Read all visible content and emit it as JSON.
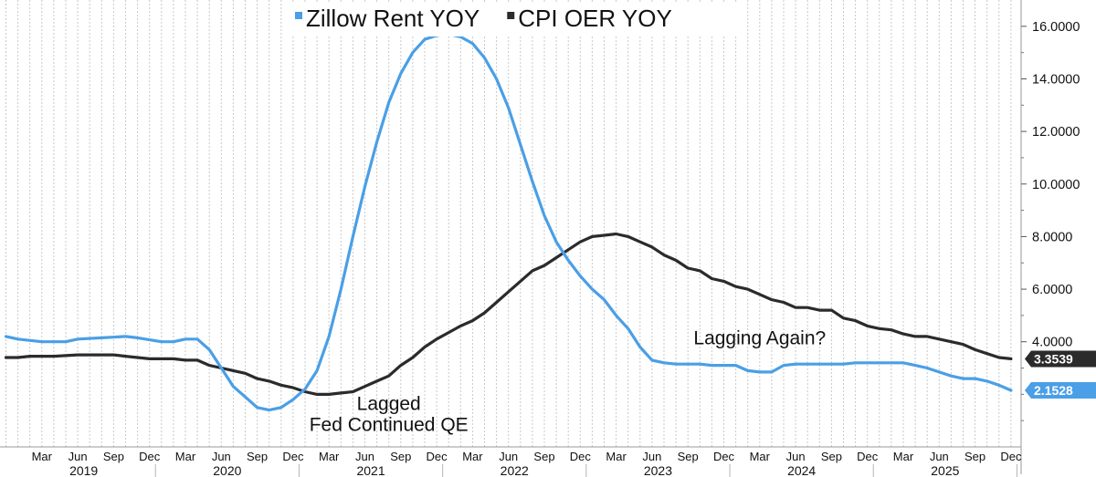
{
  "chart_data": {
    "type": "line",
    "ylim": [
      0,
      17
    ],
    "y_ticks": [
      "4.0000",
      "6.0000",
      "8.0000",
      "10.0000",
      "12.0000",
      "14.0000",
      "16.0000"
    ],
    "y_tick_values": [
      4,
      6,
      8,
      10,
      12,
      14,
      16
    ],
    "grid": "vertical-monthly",
    "legend_position": "top-center",
    "x_tick_labels": [
      "Mar",
      "Jun",
      "Sep",
      "Dec",
      "Mar",
      "Jun",
      "Sep",
      "Dec",
      "Mar",
      "Jun",
      "Sep",
      "Dec",
      "Mar",
      "Jun",
      "Sep",
      "Dec",
      "Mar",
      "Jun",
      "Sep",
      "Dec",
      "Mar",
      "Jun",
      "Sep",
      "Dec",
      "Mar",
      "Jun",
      "Sep",
      "Dec"
    ],
    "x_tick_dates": [
      "2019-03",
      "2019-06",
      "2019-09",
      "2019-12",
      "2020-03",
      "2020-06",
      "2020-09",
      "2020-12",
      "2021-03",
      "2021-06",
      "2021-09",
      "2021-12",
      "2022-03",
      "2022-06",
      "2022-09",
      "2022-12",
      "2023-03",
      "2023-06",
      "2023-09",
      "2023-12",
      "2024-03",
      "2024-06",
      "2024-09",
      "2024-12",
      "2025-03",
      "2025-06",
      "2025-09",
      "2025-12"
    ],
    "years": [
      "2019",
      "2020",
      "2021",
      "2022",
      "2023",
      "2024",
      "2025"
    ],
    "series": [
      {
        "name": "Zillow Rent YOY",
        "color": "#4a9fe6",
        "points": [
          [
            "2018-12",
            4.2
          ],
          [
            "2019-01",
            4.1
          ],
          [
            "2019-03",
            4.0
          ],
          [
            "2019-05",
            4.0
          ],
          [
            "2019-06",
            4.1
          ],
          [
            "2019-08",
            4.15
          ],
          [
            "2019-10",
            4.2
          ],
          [
            "2019-11",
            4.15
          ],
          [
            "2020-01",
            4.0
          ],
          [
            "2020-02",
            4.0
          ],
          [
            "2020-03",
            4.1
          ],
          [
            "2020-04",
            4.1
          ],
          [
            "2020-05",
            3.7
          ],
          [
            "2020-06",
            3.0
          ],
          [
            "2020-07",
            2.3
          ],
          [
            "2020-08",
            1.9
          ],
          [
            "2020-09",
            1.5
          ],
          [
            "2020-10",
            1.4
          ],
          [
            "2020-11",
            1.5
          ],
          [
            "2020-12",
            1.8
          ],
          [
            "2021-01",
            2.2
          ],
          [
            "2021-02",
            2.9
          ],
          [
            "2021-03",
            4.2
          ],
          [
            "2021-04",
            6.0
          ],
          [
            "2021-05",
            8.0
          ],
          [
            "2021-06",
            9.9
          ],
          [
            "2021-07",
            11.6
          ],
          [
            "2021-08",
            13.1
          ],
          [
            "2021-09",
            14.2
          ],
          [
            "2021-10",
            15.0
          ],
          [
            "2021-11",
            15.5
          ],
          [
            "2021-12",
            15.65
          ],
          [
            "2022-01",
            15.7
          ],
          [
            "2022-02",
            15.6
          ],
          [
            "2022-03",
            15.35
          ],
          [
            "2022-04",
            14.8
          ],
          [
            "2022-05",
            14.0
          ],
          [
            "2022-06",
            12.9
          ],
          [
            "2022-07",
            11.5
          ],
          [
            "2022-08",
            10.1
          ],
          [
            "2022-09",
            8.8
          ],
          [
            "2022-10",
            7.8
          ],
          [
            "2022-11",
            7.1
          ],
          [
            "2022-12",
            6.5
          ],
          [
            "2023-01",
            6.0
          ],
          [
            "2023-02",
            5.6
          ],
          [
            "2023-03",
            5.0
          ],
          [
            "2023-04",
            4.5
          ],
          [
            "2023-05",
            3.8
          ],
          [
            "2023-06",
            3.3
          ],
          [
            "2023-07",
            3.2
          ],
          [
            "2023-08",
            3.15
          ],
          [
            "2023-09",
            3.15
          ],
          [
            "2023-10",
            3.15
          ],
          [
            "2023-11",
            3.1
          ],
          [
            "2023-12",
            3.1
          ],
          [
            "2024-01",
            3.1
          ],
          [
            "2024-02",
            2.9
          ],
          [
            "2024-03",
            2.85
          ],
          [
            "2024-04",
            2.85
          ],
          [
            "2024-05",
            3.1
          ],
          [
            "2024-06",
            3.15
          ],
          [
            "2024-07",
            3.15
          ],
          [
            "2024-08",
            3.15
          ],
          [
            "2024-09",
            3.15
          ],
          [
            "2024-10",
            3.15
          ],
          [
            "2024-11",
            3.2
          ],
          [
            "2024-12",
            3.2
          ],
          [
            "2025-01",
            3.2
          ],
          [
            "2025-02",
            3.2
          ],
          [
            "2025-03",
            3.2
          ],
          [
            "2025-04",
            3.1
          ],
          [
            "2025-05",
            3.0
          ],
          [
            "2025-06",
            2.85
          ],
          [
            "2025-07",
            2.7
          ],
          [
            "2025-08",
            2.6
          ],
          [
            "2025-09",
            2.6
          ],
          [
            "2025-10",
            2.5
          ],
          [
            "2025-11",
            2.35
          ],
          [
            "2025-12",
            2.15
          ]
        ],
        "last_value_label": "2.1528"
      },
      {
        "name": "CPI OER YOY",
        "color": "#2b2b2b",
        "points": [
          [
            "2018-12",
            3.4
          ],
          [
            "2019-01",
            3.4
          ],
          [
            "2019-02",
            3.45
          ],
          [
            "2019-04",
            3.45
          ],
          [
            "2019-06",
            3.5
          ],
          [
            "2019-07",
            3.5
          ],
          [
            "2019-09",
            3.5
          ],
          [
            "2019-10",
            3.45
          ],
          [
            "2019-12",
            3.35
          ],
          [
            "2020-01",
            3.35
          ],
          [
            "2020-02",
            3.35
          ],
          [
            "2020-03",
            3.3
          ],
          [
            "2020-04",
            3.3
          ],
          [
            "2020-05",
            3.1
          ],
          [
            "2020-06",
            3.0
          ],
          [
            "2020-07",
            2.9
          ],
          [
            "2020-08",
            2.8
          ],
          [
            "2020-09",
            2.6
          ],
          [
            "2020-10",
            2.5
          ],
          [
            "2020-11",
            2.35
          ],
          [
            "2020-12",
            2.25
          ],
          [
            "2021-01",
            2.1
          ],
          [
            "2021-02",
            2.0
          ],
          [
            "2021-03",
            2.0
          ],
          [
            "2021-04",
            2.05
          ],
          [
            "2021-05",
            2.1
          ],
          [
            "2021-06",
            2.3
          ],
          [
            "2021-07",
            2.5
          ],
          [
            "2021-08",
            2.7
          ],
          [
            "2021-09",
            3.1
          ],
          [
            "2021-10",
            3.4
          ],
          [
            "2021-11",
            3.8
          ],
          [
            "2021-12",
            4.1
          ],
          [
            "2022-01",
            4.35
          ],
          [
            "2022-02",
            4.6
          ],
          [
            "2022-03",
            4.8
          ],
          [
            "2022-04",
            5.1
          ],
          [
            "2022-05",
            5.5
          ],
          [
            "2022-06",
            5.9
          ],
          [
            "2022-07",
            6.3
          ],
          [
            "2022-08",
            6.7
          ],
          [
            "2022-09",
            6.9
          ],
          [
            "2022-10",
            7.2
          ],
          [
            "2022-11",
            7.5
          ],
          [
            "2022-12",
            7.8
          ],
          [
            "2023-01",
            8.0
          ],
          [
            "2023-02",
            8.05
          ],
          [
            "2023-03",
            8.1
          ],
          [
            "2023-04",
            8.0
          ],
          [
            "2023-05",
            7.8
          ],
          [
            "2023-06",
            7.6
          ],
          [
            "2023-07",
            7.3
          ],
          [
            "2023-08",
            7.1
          ],
          [
            "2023-09",
            6.8
          ],
          [
            "2023-10",
            6.7
          ],
          [
            "2023-11",
            6.4
          ],
          [
            "2023-12",
            6.3
          ],
          [
            "2024-01",
            6.1
          ],
          [
            "2024-02",
            6.0
          ],
          [
            "2024-03",
            5.8
          ],
          [
            "2024-04",
            5.6
          ],
          [
            "2024-05",
            5.5
          ],
          [
            "2024-06",
            5.3
          ],
          [
            "2024-07",
            5.3
          ],
          [
            "2024-08",
            5.2
          ],
          [
            "2024-09",
            5.2
          ],
          [
            "2024-10",
            4.9
          ],
          [
            "2024-11",
            4.8
          ],
          [
            "2024-12",
            4.6
          ],
          [
            "2025-01",
            4.5
          ],
          [
            "2025-02",
            4.45
          ],
          [
            "2025-03",
            4.3
          ],
          [
            "2025-04",
            4.2
          ],
          [
            "2025-05",
            4.2
          ],
          [
            "2025-06",
            4.1
          ],
          [
            "2025-07",
            4.0
          ],
          [
            "2025-08",
            3.9
          ],
          [
            "2025-09",
            3.7
          ],
          [
            "2025-10",
            3.55
          ],
          [
            "2025-11",
            3.4
          ],
          [
            "2025-12",
            3.35
          ]
        ],
        "last_value_label": "3.3539"
      }
    ],
    "annotations": [
      {
        "id": "lagged",
        "text": "Lagged",
        "at": [
          "2021-08",
          1.4
        ]
      },
      {
        "id": "fed",
        "text": "Fed Continued QE",
        "at": [
          "2021-08",
          0.6
        ]
      },
      {
        "id": "lagging-again",
        "text": "Lagging Again?",
        "at": [
          "2024-03",
          3.9
        ]
      }
    ]
  }
}
